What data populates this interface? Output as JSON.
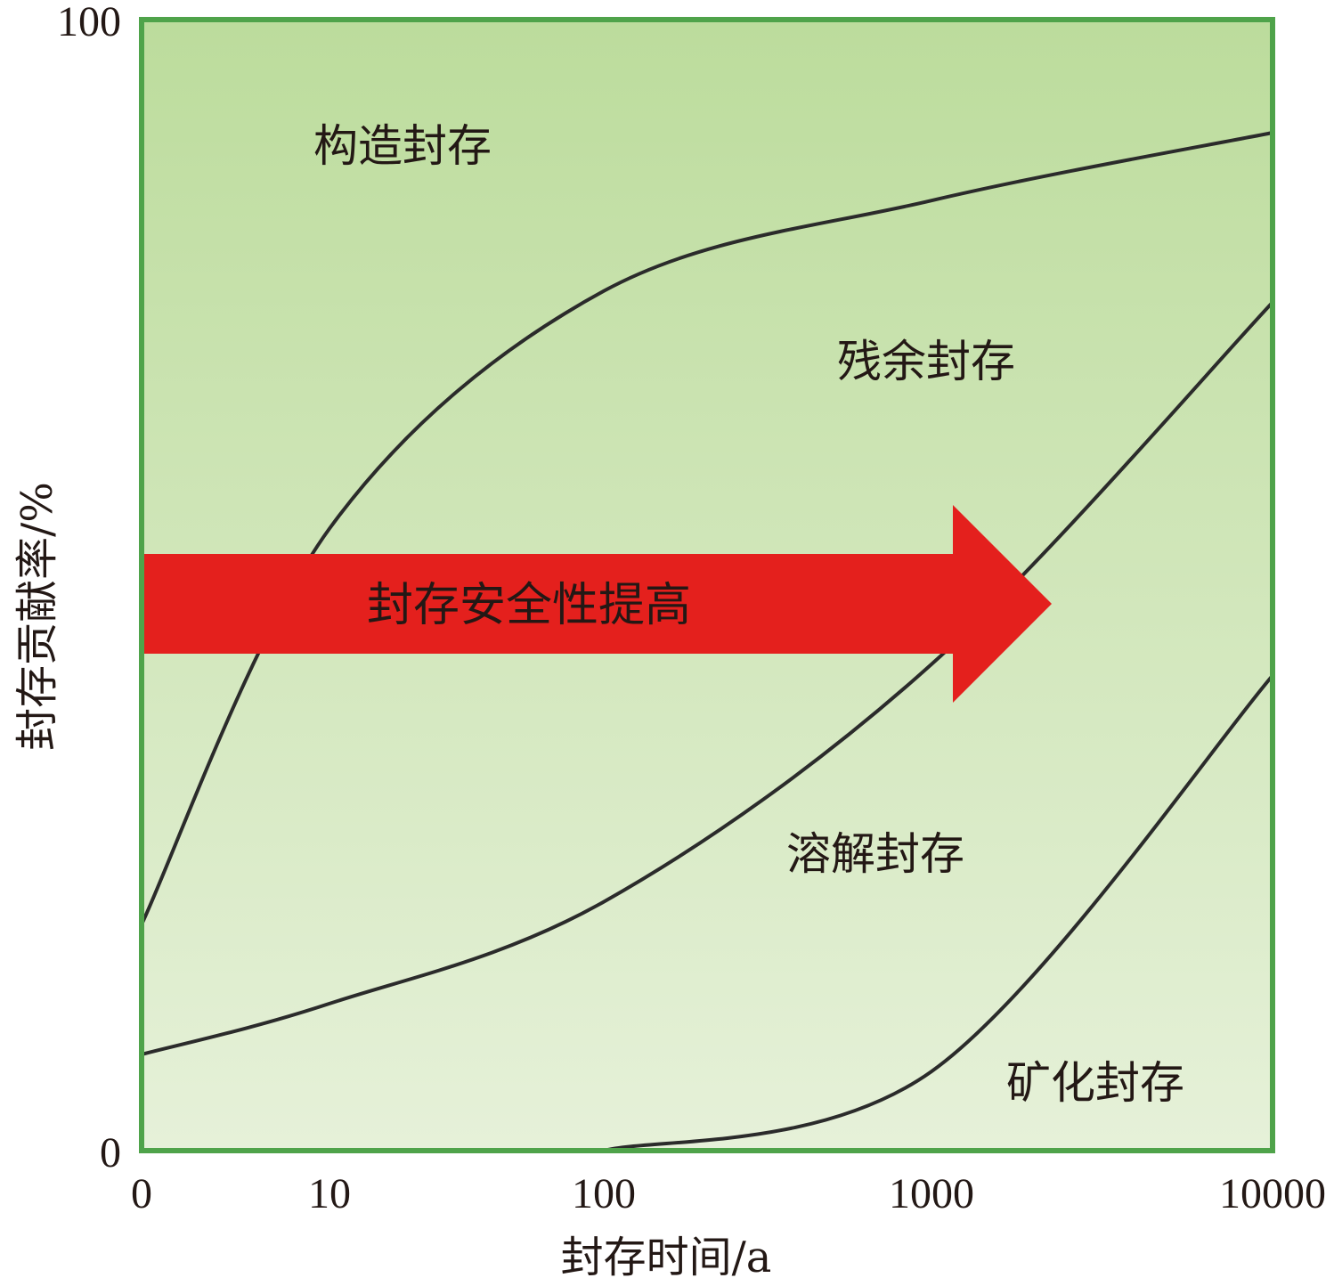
{
  "chart_data": {
    "type": "area",
    "xlabel": "封存时间/a",
    "ylabel": "封存贡献率/%",
    "x_scale": "log",
    "x_ticks": [
      "0",
      "10",
      "100",
      "1000",
      "10000"
    ],
    "y_ticks": [
      "0",
      "100"
    ],
    "ylim": [
      0,
      100
    ],
    "grid": false,
    "background_gradient": [
      "#bcdc9c",
      "#e6f1d9"
    ],
    "frame_color": "#4fa34a",
    "boundaries": [
      {
        "between": [
          "构造封存",
          "残余封存"
        ],
        "points": [
          [
            0,
            20
          ],
          [
            10,
            55
          ],
          [
            100,
            76
          ],
          [
            1000,
            84
          ],
          [
            10000,
            90
          ]
        ]
      },
      {
        "between": [
          "残余封存",
          "溶解封存"
        ],
        "points": [
          [
            0,
            8.5
          ],
          [
            10,
            13
          ],
          [
            100,
            22
          ],
          [
            1000,
            43
          ],
          [
            10000,
            75
          ]
        ]
      },
      {
        "between": [
          "溶解封存",
          "矿化封存"
        ],
        "points": [
          [
            100,
            0
          ],
          [
            1000,
            7
          ],
          [
            10000,
            42
          ]
        ]
      }
    ],
    "regions": [
      {
        "label": "构造封存"
      },
      {
        "label": "残余封存"
      },
      {
        "label": "溶解封存"
      },
      {
        "label": "矿化封存"
      }
    ],
    "annotation": {
      "text": "封存安全性提高",
      "color": "#e4201d"
    }
  }
}
